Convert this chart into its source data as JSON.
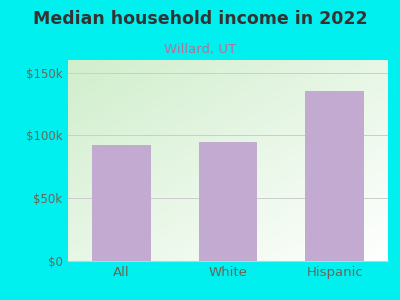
{
  "title": "Median household income in 2022",
  "subtitle": "Willard, UT",
  "categories": [
    "All",
    "White",
    "Hispanic"
  ],
  "values": [
    92000,
    95000,
    135000
  ],
  "bar_color": "#c2aad0",
  "title_color": "#333333",
  "subtitle_color": "#aa7799",
  "bg_color": "#00f0f0",
  "chart_bg_topleft": "#e6f5e0",
  "chart_bg_topright": "#ffffff",
  "chart_bg_bottomleft": "#d0eecc",
  "chart_bg_bottomright": "#f0f8f0",
  "ylim": [
    0,
    160000
  ],
  "yticks": [
    0,
    50000,
    100000,
    150000
  ],
  "ytick_labels": [
    "$0",
    "$50k",
    "$100k",
    "$150k"
  ],
  "tick_color": "#666655",
  "grid_color": "#cccccc",
  "title_fontsize": 12.5,
  "subtitle_fontsize": 9.5,
  "tick_fontsize": 8.5,
  "xlabel_fontsize": 9.5
}
